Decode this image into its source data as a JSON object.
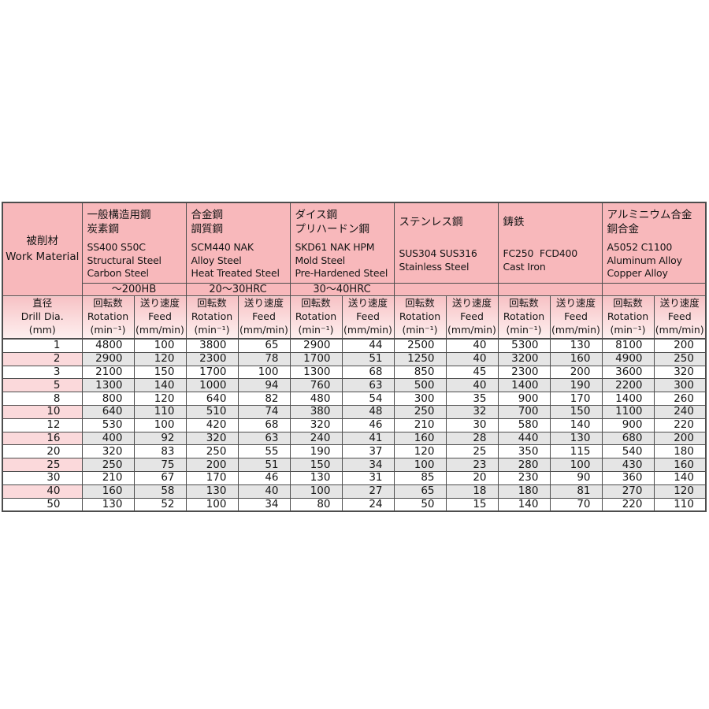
{
  "table": {
    "work_material": {
      "jp": "被削材",
      "en": "Work Material"
    },
    "drill_dia": {
      "jp": "直径",
      "en": "Drill Dia.",
      "unit": "(mm)"
    },
    "col_headers": {
      "rotation": {
        "jp": "回転数",
        "en": "Rotation",
        "unit": "(min⁻¹)"
      },
      "feed": {
        "jp": "送り速度",
        "en": "Feed",
        "unit": "(mm/min)"
      }
    },
    "materials": [
      {
        "jp": [
          "一般構造用鋼",
          "炭素鋼"
        ],
        "code": "SS400 S50C",
        "en": [
          "Structural Steel",
          "Carbon Steel"
        ],
        "hardness": "～200HB"
      },
      {
        "jp": [
          "合金鋼",
          "調質鋼"
        ],
        "code": "SCM440 NAK",
        "en": [
          "Alloy Steel",
          "Heat Treated Steel"
        ],
        "hardness": "20～30HRC"
      },
      {
        "jp": [
          "ダイス鋼",
          "プリハードン鋼"
        ],
        "code": "SKD61 NAK HPM",
        "en": [
          "Mold Steel",
          "Pre-Hardened Steel"
        ],
        "hardness": "30～40HRC"
      },
      {
        "jp": [
          "ステンレス鋼"
        ],
        "code": "SUS304 SUS316",
        "en": [
          "Stainless Steel"
        ],
        "hardness": ""
      },
      {
        "jp": [
          "鋳鉄"
        ],
        "code": "FC250  FCD400",
        "en": [
          "Cast Iron"
        ],
        "hardness": ""
      },
      {
        "jp": [
          "アルミニウム合金",
          "銅合金"
        ],
        "code": "A5052 C1100",
        "en": [
          "Aluminum Alloy",
          "Copper Alloy"
        ],
        "hardness": ""
      }
    ],
    "rows": [
      {
        "dia": "1",
        "values": [
          "4800",
          "100",
          "3800",
          "65",
          "2900",
          "44",
          "2500",
          "40",
          "5300",
          "130",
          "8100",
          "200"
        ]
      },
      {
        "dia": "2",
        "values": [
          "2900",
          "120",
          "2300",
          "78",
          "1700",
          "51",
          "1250",
          "40",
          "3200",
          "160",
          "4900",
          "250"
        ]
      },
      {
        "dia": "3",
        "values": [
          "2100",
          "150",
          "1700",
          "100",
          "1300",
          "68",
          "850",
          "45",
          "2300",
          "200",
          "3600",
          "320"
        ]
      },
      {
        "dia": "5",
        "values": [
          "1300",
          "140",
          "1000",
          "94",
          "760",
          "63",
          "500",
          "40",
          "1400",
          "190",
          "2200",
          "300"
        ]
      },
      {
        "dia": "8",
        "values": [
          "800",
          "120",
          "640",
          "82",
          "480",
          "54",
          "300",
          "35",
          "900",
          "170",
          "1400",
          "260"
        ]
      },
      {
        "dia": "10",
        "values": [
          "640",
          "110",
          "510",
          "74",
          "380",
          "48",
          "250",
          "32",
          "700",
          "150",
          "1100",
          "240"
        ]
      },
      {
        "dia": "12",
        "values": [
          "530",
          "100",
          "420",
          "68",
          "320",
          "46",
          "210",
          "30",
          "580",
          "140",
          "900",
          "220"
        ]
      },
      {
        "dia": "16",
        "values": [
          "400",
          "92",
          "320",
          "63",
          "240",
          "41",
          "160",
          "28",
          "440",
          "130",
          "680",
          "200"
        ]
      },
      {
        "dia": "20",
        "values": [
          "320",
          "83",
          "250",
          "55",
          "190",
          "37",
          "120",
          "25",
          "350",
          "115",
          "540",
          "180"
        ]
      },
      {
        "dia": "25",
        "values": [
          "250",
          "75",
          "200",
          "51",
          "150",
          "34",
          "100",
          "23",
          "280",
          "100",
          "430",
          "160"
        ]
      },
      {
        "dia": "30",
        "values": [
          "210",
          "67",
          "170",
          "46",
          "130",
          "31",
          "85",
          "20",
          "230",
          "90",
          "360",
          "140"
        ]
      },
      {
        "dia": "40",
        "values": [
          "160",
          "58",
          "130",
          "40",
          "100",
          "27",
          "65",
          "18",
          "180",
          "81",
          "270",
          "120"
        ]
      },
      {
        "dia": "50",
        "values": [
          "130",
          "52",
          "100",
          "34",
          "80",
          "24",
          "50",
          "15",
          "140",
          "70",
          "220",
          "110"
        ]
      }
    ]
  },
  "colors": {
    "header_pink": "#f8b8bb",
    "subheader_gradient_top": "#f7c2c5",
    "subheader_gradient_bottom": "#fdefef",
    "stripe_gray": "#e5e5e5",
    "stripe_dia_pink": "#fbd9db",
    "border": "#4d4d4d",
    "text": "#161616"
  }
}
